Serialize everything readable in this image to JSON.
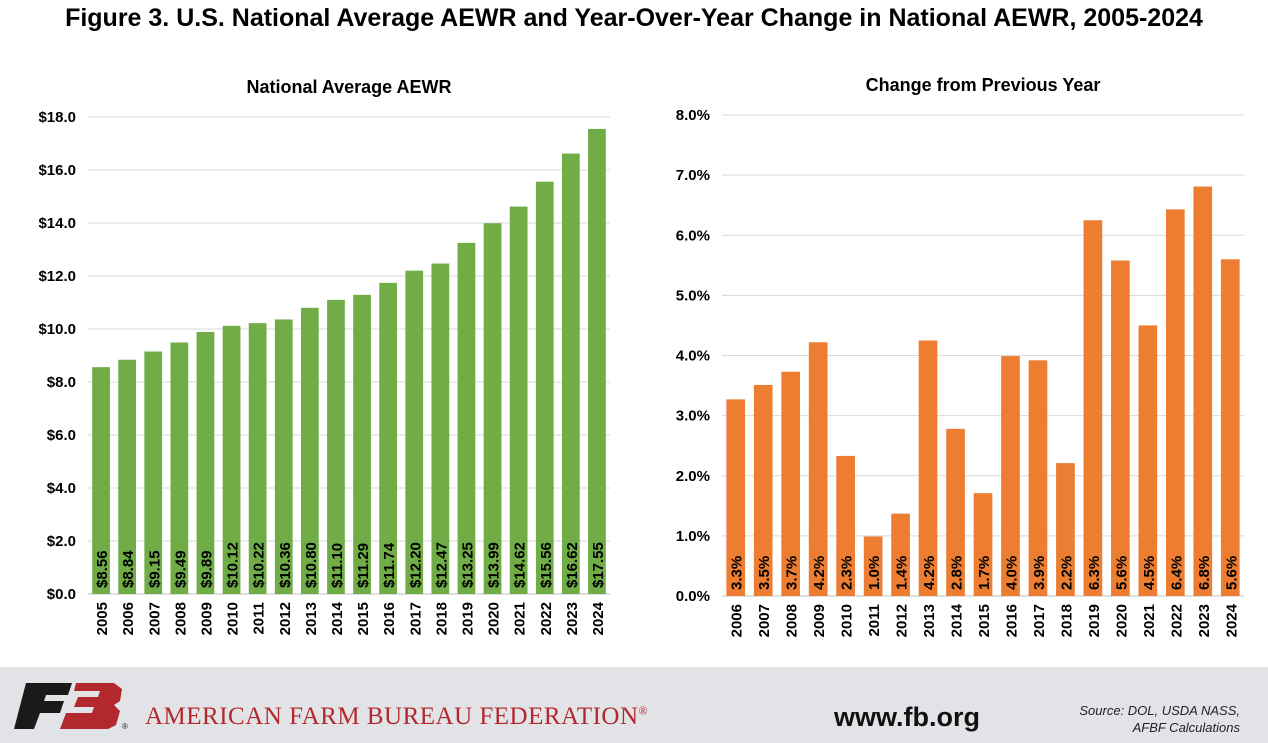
{
  "figure_title": "Figure 3. U.S. National Average AEWR and Year-Over-Year Change in National AEWR, 2005-2024",
  "chart_data": [
    {
      "type": "bar",
      "title": "National Average AEWR",
      "xlabel": "",
      "ylabel": "",
      "categories": [
        "2005",
        "2006",
        "2007",
        "2008",
        "2009",
        "2010",
        "2011",
        "2012",
        "2013",
        "2014",
        "2015",
        "2016",
        "2017",
        "2018",
        "2019",
        "2020",
        "2021",
        "2022",
        "2023",
        "2024"
      ],
      "values": [
        8.56,
        8.84,
        9.15,
        9.49,
        9.89,
        10.12,
        10.22,
        10.36,
        10.8,
        11.1,
        11.29,
        11.74,
        12.2,
        12.47,
        13.25,
        13.99,
        14.62,
        15.56,
        16.62,
        17.55
      ],
      "data_labels": [
        "$8.56",
        "$8.84",
        "$9.15",
        "$9.49",
        "$9.89",
        "$10.12",
        "$10.22",
        "$10.36",
        "$10.80",
        "$11.10",
        "$11.29",
        "$11.74",
        "$12.20",
        "$12.47",
        "$13.25",
        "$13.99",
        "$14.62",
        "$15.56",
        "$16.62",
        "$17.55"
      ],
      "yticks": [
        "$0.0",
        "$2.0",
        "$4.0",
        "$6.0",
        "$8.0",
        "$10.0",
        "$12.0",
        "$14.0",
        "$16.0",
        "$18.0"
      ],
      "ylim": [
        0,
        18
      ],
      "color": "#70ad47",
      "grid": true,
      "legend": "none"
    },
    {
      "type": "bar",
      "title": "Change from Previous Year",
      "xlabel": "",
      "ylabel": "",
      "categories": [
        "2006",
        "2007",
        "2008",
        "2009",
        "2010",
        "2011",
        "2012",
        "2013",
        "2014",
        "2015",
        "2016",
        "2017",
        "2018",
        "2019",
        "2020",
        "2021",
        "2022",
        "2023",
        "2024"
      ],
      "values": [
        3.27,
        3.51,
        3.73,
        4.22,
        2.33,
        0.99,
        1.37,
        4.25,
        2.78,
        1.71,
        3.99,
        3.92,
        2.21,
        6.25,
        5.58,
        4.5,
        6.43,
        6.81,
        5.6
      ],
      "data_labels": [
        "3.3%",
        "3.5%",
        "3.7%",
        "4.2%",
        "2.3%",
        "1.0%",
        "1.4%",
        "4.2%",
        "2.8%",
        "1.7%",
        "4.0%",
        "3.9%",
        "2.2%",
        "6.3%",
        "5.6%",
        "4.5%",
        "6.4%",
        "6.8%",
        "5.6%"
      ],
      "yticks": [
        "0.0%",
        "1.0%",
        "2.0%",
        "3.0%",
        "4.0%",
        "5.0%",
        "6.0%",
        "7.0%",
        "8.0%"
      ],
      "ylim": [
        0,
        8
      ],
      "color": "#ed7d31",
      "grid": true,
      "legend": "none"
    }
  ],
  "footer": {
    "logo_text": "FB",
    "organization": "AMERICAN FARM BUREAU FEDERATION",
    "registered_mark": "®",
    "website": "www.fb.org",
    "source_line1": "Source: DOL, USDA NASS,",
    "source_line2": "AFBF Calculations",
    "logo_color": "#b3282d",
    "logo_dark": "#1a1a1a"
  }
}
